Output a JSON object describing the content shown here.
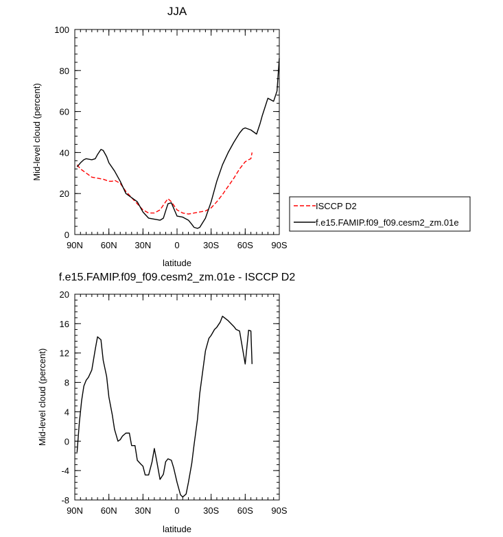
{
  "chart_data": [
    {
      "type": "line",
      "title": "JJA",
      "xlabel": "latitude",
      "ylabel": "Mid-level cloud (percent)",
      "xlim": [
        90,
        -90
      ],
      "ylim": [
        0,
        100
      ],
      "x_ticks": [
        90,
        60,
        30,
        0,
        -30,
        -60,
        -90
      ],
      "x_tick_labels": [
        "90N",
        "60N",
        "30N",
        "0",
        "30S",
        "60S",
        "90S"
      ],
      "y_ticks": [
        0,
        20,
        40,
        60,
        80,
        100
      ],
      "y_tick_labels": [
        "0",
        "20",
        "40",
        "60",
        "80",
        "100"
      ],
      "legend_position": "outside right",
      "series": [
        {
          "name": "ISCCP D2",
          "color": "#ff0000",
          "dash": "dashed",
          "x": [
            88,
            85,
            80,
            75,
            70,
            65,
            60,
            57,
            55,
            50,
            45,
            40,
            35,
            30,
            25,
            20,
            15,
            10,
            8,
            5,
            0,
            -5,
            -10,
            -15,
            -20,
            -25,
            -30,
            -35,
            -40,
            -45,
            -50,
            -55,
            -60,
            -63,
            -65,
            -66
          ],
          "y": [
            34,
            32,
            30,
            28,
            27.5,
            27,
            26,
            26,
            26.5,
            25,
            21,
            18,
            15,
            12,
            10.5,
            10.5,
            12,
            16,
            17.5,
            16,
            12,
            10.5,
            10,
            10.5,
            11,
            11.5,
            13,
            16,
            19.5,
            23.5,
            27.5,
            32,
            35.5,
            36.5,
            37,
            40
          ]
        },
        {
          "name": "f.e15.FAMIP.f09_f09.cesm2_zm.01e",
          "color": "#000000",
          "dash": "solid",
          "x": [
            88,
            85,
            82,
            80,
            75,
            72,
            70,
            67,
            65,
            62,
            60,
            55,
            50,
            45,
            40,
            35,
            32,
            30,
            25,
            20,
            15,
            12,
            10,
            8,
            5,
            0,
            -5,
            -10,
            -13,
            -15,
            -18,
            -20,
            -25,
            -30,
            -35,
            -40,
            -45,
            -50,
            -55,
            -58,
            -60,
            -65,
            -70,
            -73,
            -75,
            -80,
            -85,
            -88,
            -90
          ],
          "y": [
            33,
            35,
            36.5,
            37,
            36.5,
            37,
            39,
            41.5,
            41,
            38,
            35,
            31,
            26,
            20,
            18,
            16,
            13,
            11,
            8,
            7.5,
            7,
            8,
            11.5,
            15,
            15.5,
            9,
            8.5,
            7,
            5,
            3.5,
            3,
            3.5,
            8,
            16,
            26,
            34,
            40,
            45,
            49.5,
            51.5,
            52,
            51,
            49,
            54,
            58,
            66.5,
            65,
            70,
            86
          ]
        }
      ]
    },
    {
      "type": "line",
      "title": "f.e15.FAMIP.f09_f09.cesm2_zm.01e - ISCCP D2",
      "xlabel": "latitude",
      "ylabel": "Mid-level cloud (percent)",
      "xlim": [
        90,
        -90
      ],
      "ylim": [
        -8,
        20
      ],
      "x_ticks": [
        90,
        60,
        30,
        0,
        -30,
        -60,
        -90
      ],
      "x_tick_labels": [
        "90N",
        "60N",
        "30N",
        "0",
        "30S",
        "60S",
        "90S"
      ],
      "y_ticks": [
        -8,
        -4,
        0,
        4,
        8,
        12,
        16,
        20
      ],
      "y_tick_labels": [
        "-8",
        "-4",
        "0",
        "4",
        "8",
        "12",
        "16",
        "20"
      ],
      "series": [
        {
          "color": "#000000",
          "dash": "solid",
          "x": [
            88,
            86,
            84,
            82,
            80,
            78,
            75,
            72,
            70,
            67,
            65,
            62,
            60,
            57,
            55,
            52,
            50,
            48,
            45,
            42,
            40,
            37,
            35,
            32,
            30,
            28,
            25,
            22,
            20,
            18,
            15,
            12,
            10,
            8,
            5,
            3,
            0,
            -3,
            -5,
            -8,
            -10,
            -13,
            -15,
            -18,
            -20,
            -23,
            -25,
            -28,
            -30,
            -33,
            -35,
            -38,
            -40,
            -45,
            -50,
            -52,
            -55,
            -60,
            -63,
            -65,
            -66
          ],
          "y": [
            -1.5,
            2.5,
            5.5,
            7.5,
            8.3,
            8.7,
            9.7,
            12.5,
            14.2,
            13.8,
            11,
            8.8,
            6,
            3.6,
            1.6,
            0,
            0.2,
            0.7,
            1.1,
            1.1,
            -0.6,
            -0.6,
            -2.6,
            -3.1,
            -3.4,
            -4.6,
            -4.6,
            -2.8,
            -1,
            -2.6,
            -5.2,
            -4.5,
            -2.8,
            -2.4,
            -2.6,
            -3.6,
            -5.6,
            -7.3,
            -7.6,
            -7.2,
            -5.6,
            -3,
            -0.5,
            3,
            6.5,
            10,
            12.3,
            14,
            14.4,
            15.2,
            15.5,
            16.2,
            17,
            16.4,
            15.6,
            15.2,
            15,
            10.5,
            15.1,
            15,
            10.5
          ]
        }
      ]
    }
  ]
}
